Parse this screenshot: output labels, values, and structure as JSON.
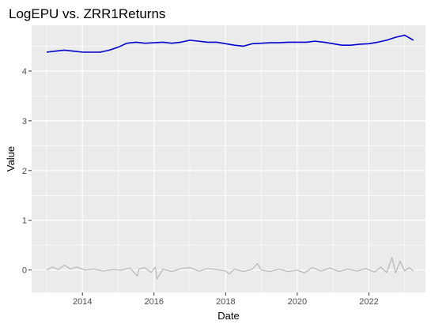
{
  "chart_data": {
    "type": "line",
    "title": "LogEPU vs. ZRR1Returns",
    "xlabel": "Date",
    "ylabel": "Value",
    "x_range": [
      "2012-08-01",
      "2023-08-01"
    ],
    "ylim": [
      -0.45,
      4.92
    ],
    "x_ticks": [
      "2014",
      "2016",
      "2018",
      "2020",
      "2022"
    ],
    "y_ticks": [
      "0",
      "1",
      "2",
      "3",
      "4"
    ],
    "grid": true,
    "legend": "none",
    "colors": {
      "panel": "#ebebeb",
      "grid": "#ffffff",
      "tick_mark": "#333333"
    },
    "series": [
      {
        "color": "#0000cd",
        "x": [
          "2013-01-01",
          "2013-04-01",
          "2013-07-01",
          "2013-10-01",
          "2014-01-01",
          "2014-04-01",
          "2014-07-01",
          "2014-10-01",
          "2015-01-01",
          "2015-04-01",
          "2015-07-01",
          "2015-10-01",
          "2016-01-01",
          "2016-04-01",
          "2016-07-01",
          "2016-10-01",
          "2017-01-01",
          "2017-04-01",
          "2017-07-01",
          "2017-10-01",
          "2018-01-01",
          "2018-04-01",
          "2018-07-01",
          "2018-10-01",
          "2019-01-01",
          "2019-04-01",
          "2019-07-01",
          "2019-10-01",
          "2020-01-01",
          "2020-04-01",
          "2020-07-01",
          "2020-10-01",
          "2021-01-01",
          "2021-04-01",
          "2021-07-01",
          "2021-10-01",
          "2022-01-01",
          "2022-04-01",
          "2022-07-01",
          "2022-10-01",
          "2023-01-01",
          "2023-03-31"
        ],
        "y": [
          4.38,
          4.4,
          4.42,
          4.4,
          4.38,
          4.38,
          4.38,
          4.42,
          4.48,
          4.56,
          4.58,
          4.56,
          4.57,
          4.58,
          4.56,
          4.58,
          4.62,
          4.6,
          4.58,
          4.58,
          4.55,
          4.52,
          4.5,
          4.55,
          4.56,
          4.57,
          4.57,
          4.58,
          4.58,
          4.58,
          4.6,
          4.58,
          4.55,
          4.52,
          4.52,
          4.54,
          4.55,
          4.58,
          4.62,
          4.68,
          4.72,
          4.62
        ]
      },
      {
        "color": "#bebebe",
        "x": [
          "2013-01-01",
          "2013-03-01",
          "2013-05-01",
          "2013-07-01",
          "2013-09-01",
          "2013-11-01",
          "2014-02-01",
          "2014-05-01",
          "2014-08-01",
          "2014-11-01",
          "2015-02-01",
          "2015-05-01",
          "2015-07-15",
          "2015-08-01",
          "2015-10-01",
          "2015-12-01",
          "2016-01-15",
          "2016-02-01",
          "2016-04-01",
          "2016-07-01",
          "2016-10-01",
          "2017-01-01",
          "2017-04-01",
          "2017-07-01",
          "2017-10-01",
          "2018-01-01",
          "2018-02-06",
          "2018-04-01",
          "2018-07-01",
          "2018-10-01",
          "2018-11-20",
          "2019-01-01",
          "2019-04-01",
          "2019-07-01",
          "2019-10-01",
          "2020-01-01",
          "2020-03-15",
          "2020-06-01",
          "2020-09-01",
          "2020-12-01",
          "2021-03-01",
          "2021-06-01",
          "2021-09-01",
          "2021-12-01",
          "2022-03-01",
          "2022-05-01",
          "2022-07-01",
          "2022-08-25",
          "2022-10-01",
          "2022-11-15",
          "2023-01-01",
          "2023-02-15",
          "2023-03-31"
        ],
        "y": [
          0.0,
          0.06,
          0.01,
          0.1,
          0.02,
          0.06,
          0.0,
          0.02,
          -0.02,
          0.01,
          0.0,
          0.04,
          -0.12,
          0.02,
          0.05,
          -0.05,
          0.06,
          -0.18,
          0.02,
          -0.03,
          0.03,
          0.05,
          -0.02,
          0.03,
          0.01,
          -0.02,
          -0.08,
          0.02,
          -0.03,
          0.02,
          0.13,
          0.0,
          -0.03,
          0.02,
          -0.03,
          0.0,
          -0.06,
          0.05,
          -0.02,
          0.04,
          -0.03,
          0.02,
          -0.02,
          0.03,
          -0.04,
          0.06,
          -0.05,
          0.25,
          -0.06,
          0.18,
          -0.02,
          0.05,
          -0.02
        ]
      }
    ]
  }
}
